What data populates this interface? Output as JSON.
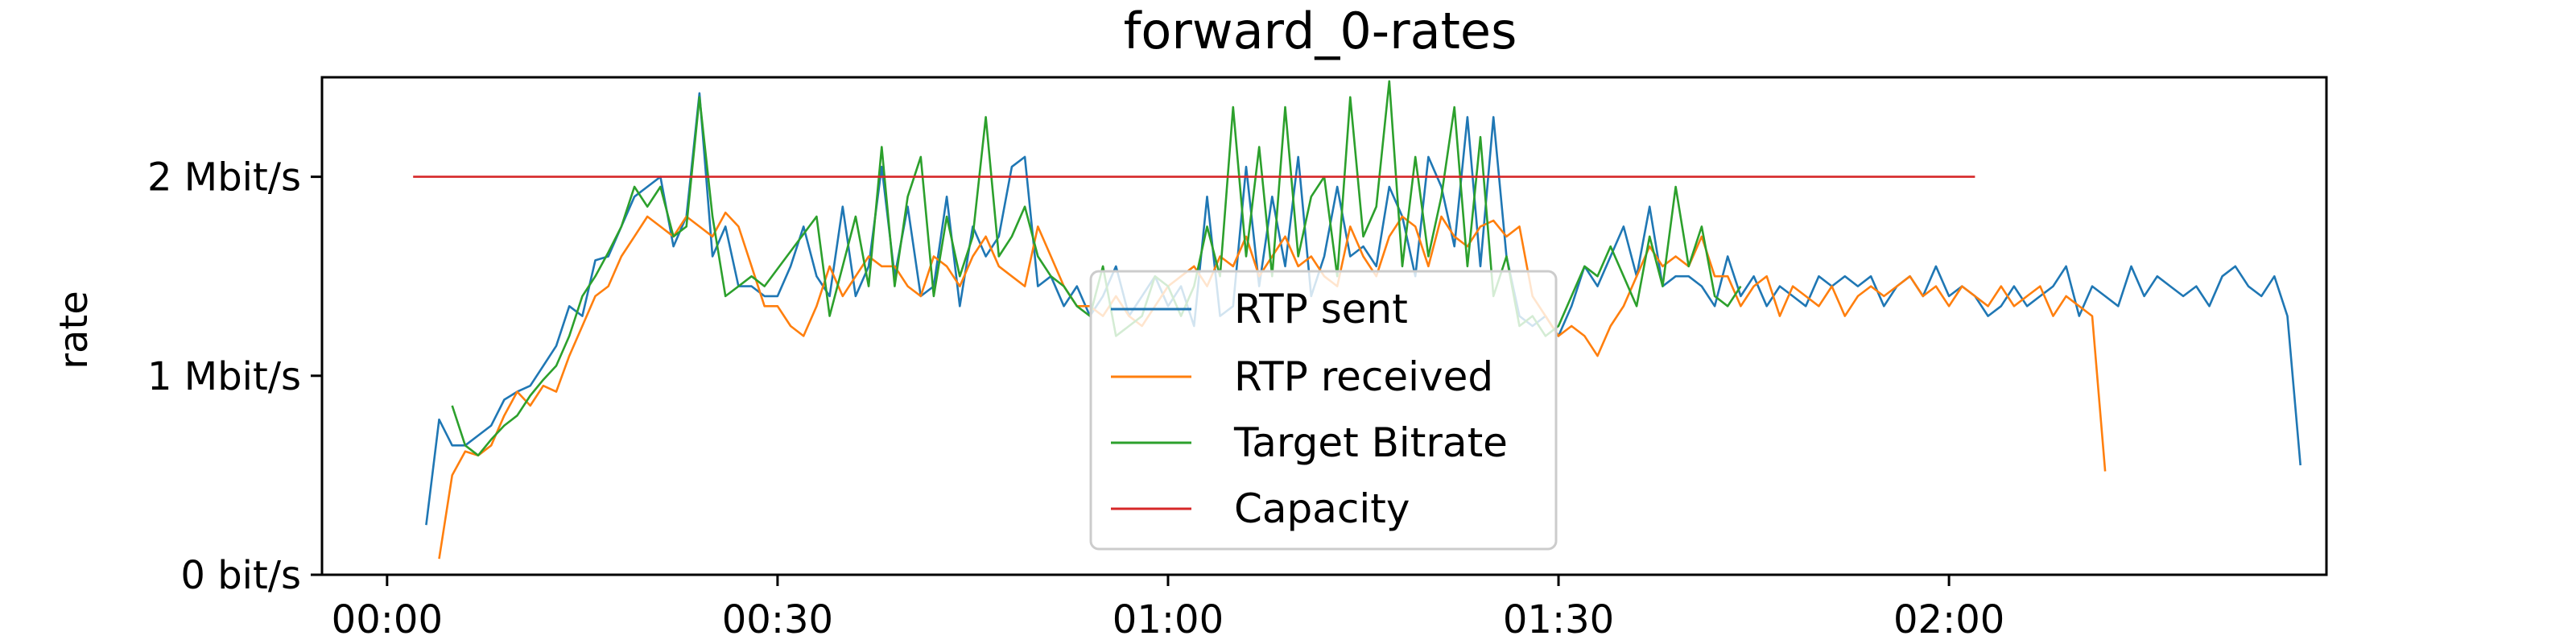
{
  "chart_data": {
    "type": "line",
    "title": "forward_0-rates",
    "xlabel": "",
    "ylabel": "rate",
    "x_unit": "seconds",
    "xlim": [
      -5,
      149
    ],
    "ylim": [
      0,
      2.5
    ],
    "xticks": [
      0,
      30,
      60,
      90,
      120
    ],
    "xtick_labels": [
      "00:00",
      "00:30",
      "01:00",
      "01:30",
      "02:00"
    ],
    "yticks": [
      0,
      1,
      2
    ],
    "ytick_labels": [
      "0 bit/s",
      "1 Mbit/s",
      "2 Mbit/s"
    ],
    "grid": false,
    "legend_position": "lower center",
    "series": [
      {
        "name": "RTP sent",
        "color": "#1f77b4",
        "x": [
          3,
          4,
          5,
          6,
          7,
          8,
          9,
          10,
          11,
          12,
          13,
          14,
          15,
          16,
          17,
          18,
          19,
          20,
          21,
          22,
          23,
          24,
          25,
          26,
          27,
          28,
          29,
          30,
          31,
          32,
          33,
          34,
          35,
          36,
          37,
          38,
          39,
          40,
          41,
          42,
          43,
          44,
          45,
          46,
          47,
          48,
          49,
          50,
          51,
          52,
          53,
          54,
          55,
          56,
          57,
          58,
          59,
          60,
          61,
          62,
          63,
          64,
          65,
          66,
          67,
          68,
          69,
          70,
          71,
          72,
          73,
          74,
          75,
          76,
          77,
          78,
          79,
          80,
          81,
          82,
          83,
          84,
          85,
          86,
          87,
          88,
          89,
          90,
          91,
          92,
          93,
          94,
          95,
          96,
          97,
          98,
          99,
          100,
          101,
          102,
          103,
          104,
          105,
          106,
          107,
          108,
          109,
          110,
          111,
          112,
          113,
          114,
          115,
          116,
          117,
          118,
          119,
          120,
          121,
          122,
          123,
          124,
          125,
          126,
          127,
          128,
          129,
          130,
          131,
          132,
          133,
          134,
          135,
          136,
          137,
          138,
          139,
          140,
          141,
          142,
          143,
          144,
          145,
          146,
          147
        ],
        "y": [
          0.25,
          0.78,
          0.65,
          0.65,
          0.7,
          0.75,
          0.88,
          0.92,
          0.95,
          1.05,
          1.15,
          1.35,
          1.3,
          1.58,
          1.6,
          1.75,
          1.9,
          1.95,
          2.0,
          1.65,
          1.8,
          2.42,
          1.6,
          1.75,
          1.45,
          1.45,
          1.4,
          1.4,
          1.55,
          1.75,
          1.5,
          1.4,
          1.85,
          1.4,
          1.55,
          2.05,
          1.5,
          1.85,
          1.4,
          1.45,
          1.9,
          1.35,
          1.75,
          1.6,
          1.7,
          2.05,
          2.1,
          1.45,
          1.5,
          1.35,
          1.45,
          1.3,
          1.4,
          1.55,
          1.3,
          1.4,
          1.5,
          1.35,
          1.45,
          1.25,
          1.9,
          1.3,
          1.35,
          2.05,
          1.45,
          1.9,
          1.55,
          2.1,
          1.4,
          1.6,
          1.95,
          1.6,
          1.65,
          1.55,
          1.95,
          1.8,
          1.5,
          2.1,
          1.95,
          1.65,
          2.3,
          1.55,
          2.3,
          1.6,
          1.3,
          1.25,
          1.3,
          1.2,
          1.35,
          1.55,
          1.45,
          1.6,
          1.75,
          1.5,
          1.85,
          1.45,
          1.5,
          1.5,
          1.45,
          1.35,
          1.6,
          1.4,
          1.5,
          1.35,
          1.45,
          1.4,
          1.35,
          1.5,
          1.45,
          1.5,
          1.45,
          1.5,
          1.35,
          1.45,
          1.5,
          1.4,
          1.55,
          1.4,
          1.45,
          1.4,
          1.3,
          1.35,
          1.45,
          1.35,
          1.4,
          1.45,
          1.55,
          1.3,
          1.45,
          1.4,
          1.35,
          1.55,
          1.4,
          1.5,
          1.45,
          1.4,
          1.45,
          1.35,
          1.5,
          1.55,
          1.45,
          1.4,
          1.5,
          1.3,
          0.55
        ],
        "_note_y": "Approximate, in Mbit/s, read off the plot"
      }
    ]
  }
}
